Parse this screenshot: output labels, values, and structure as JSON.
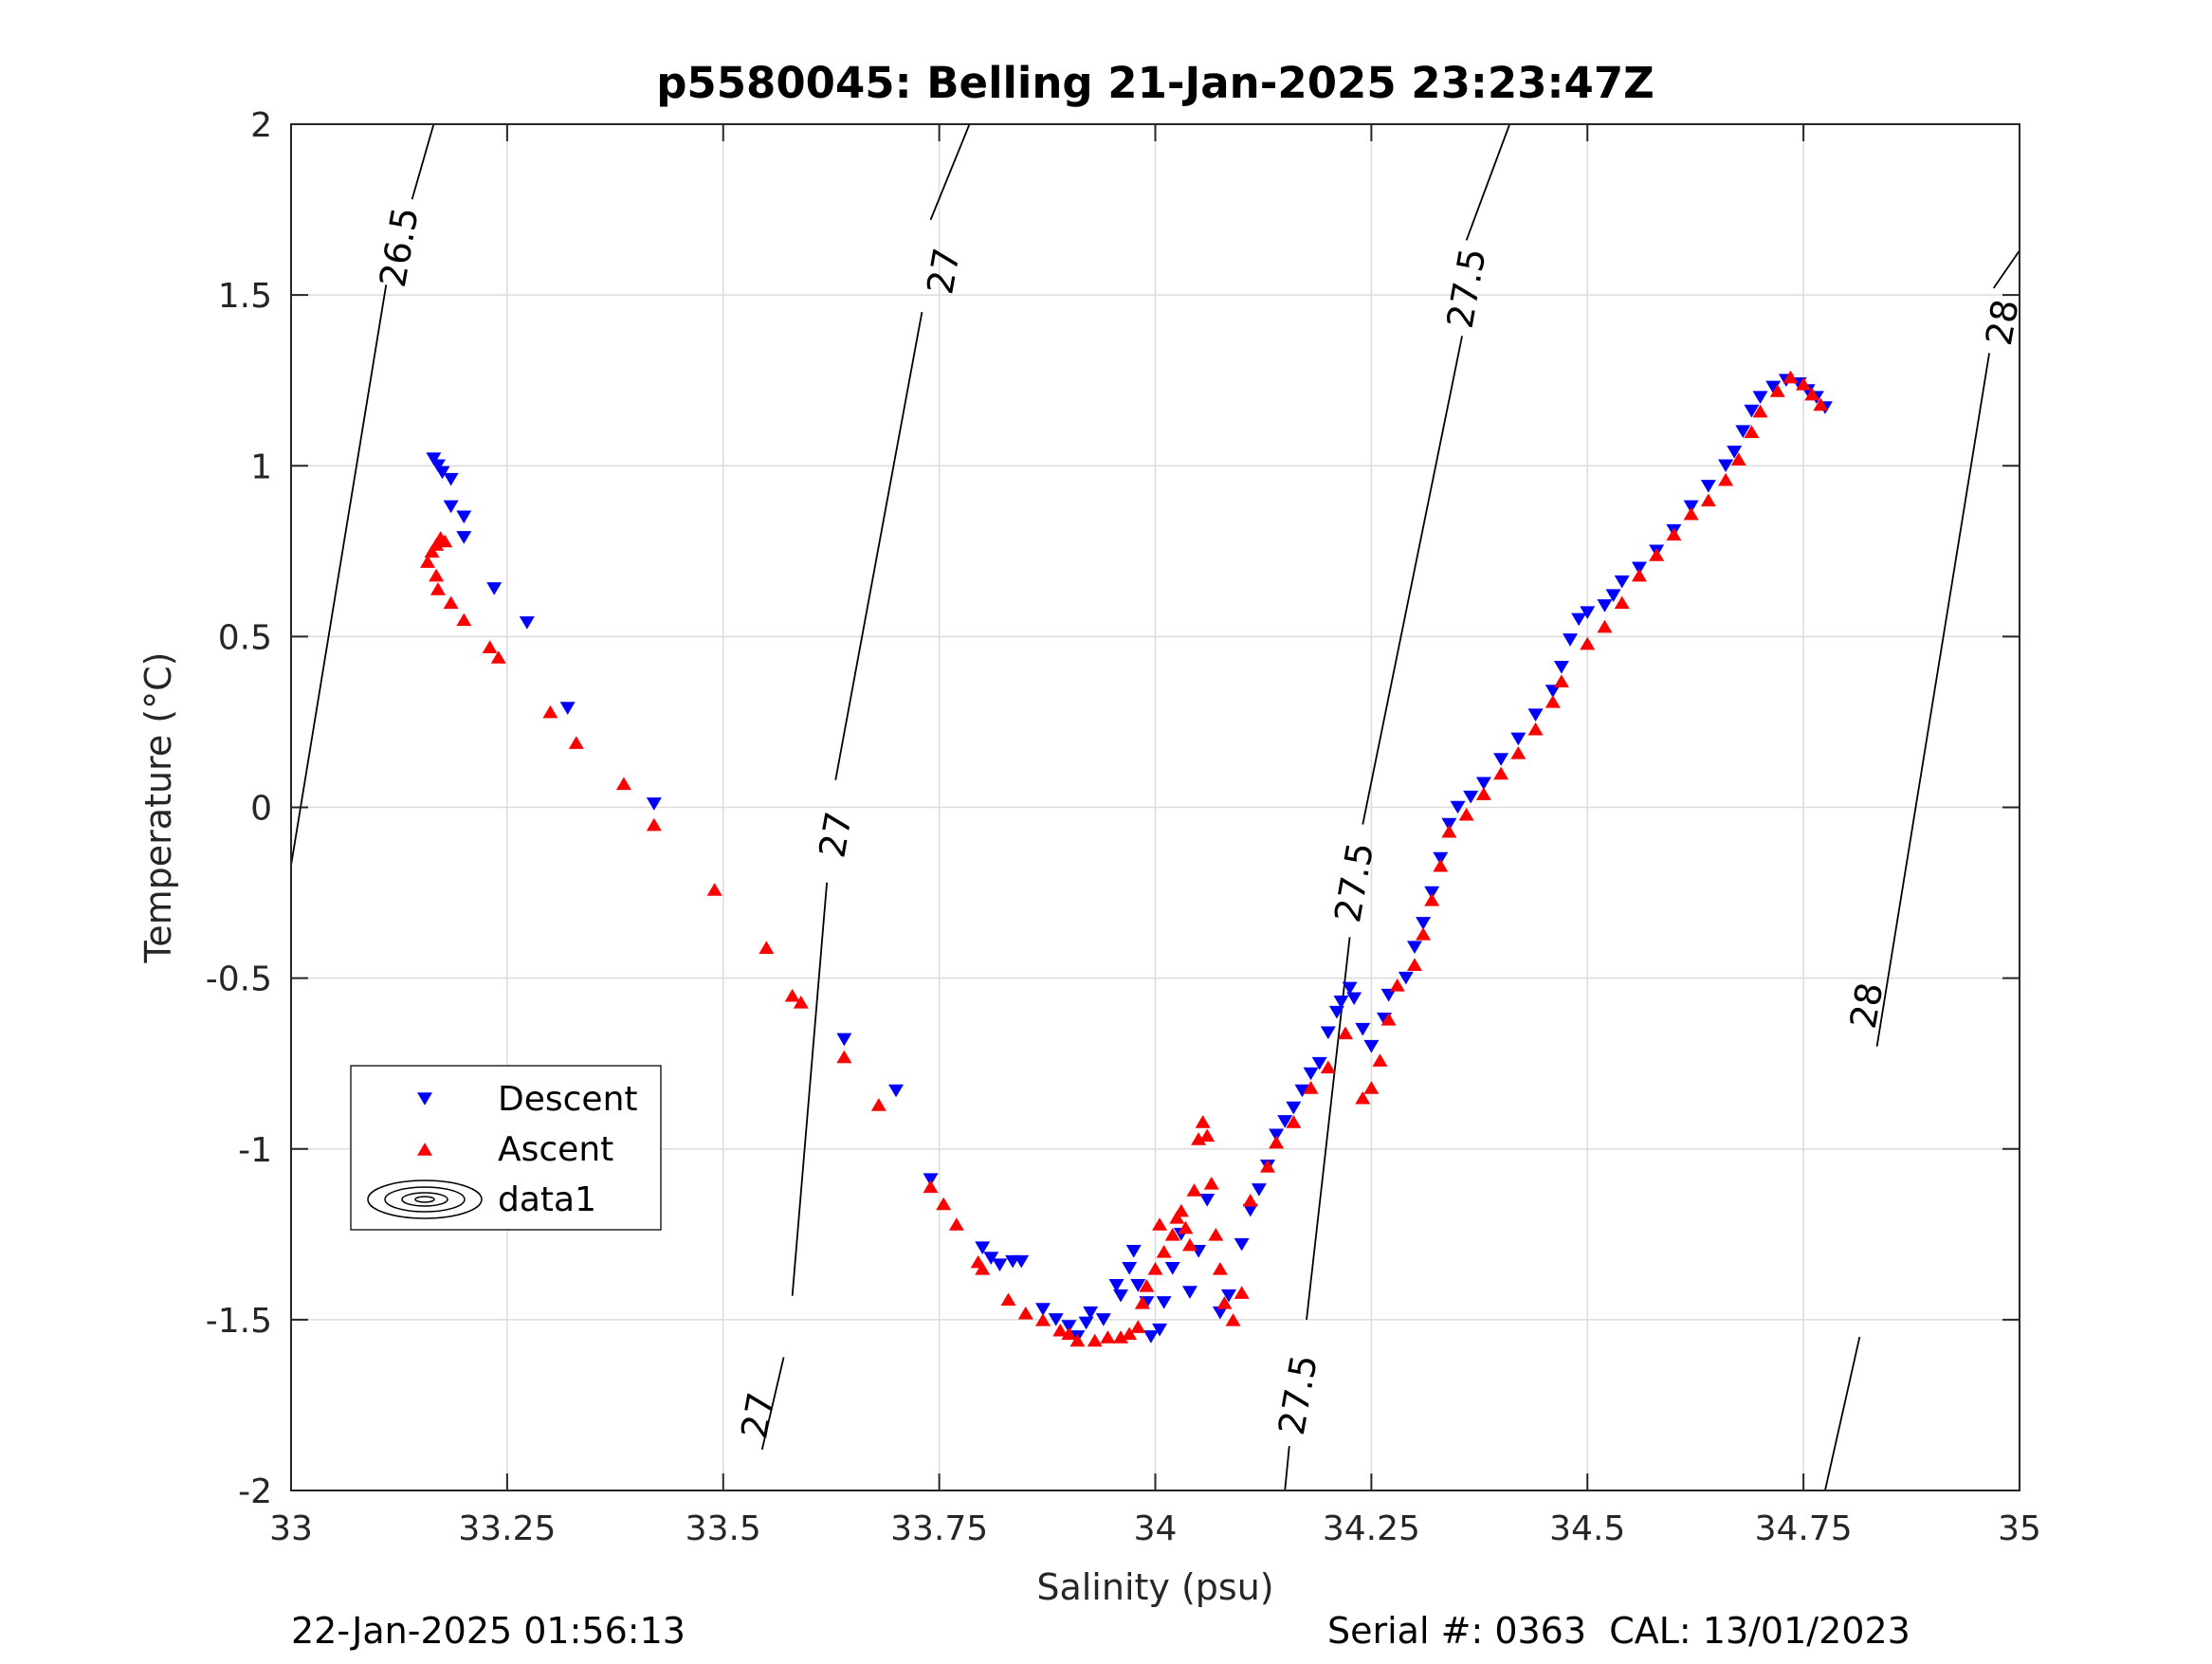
{
  "chart_data": {
    "type": "scatter",
    "title": "p5580045: Belling 21-Jan-2025 23:23:47Z",
    "xlabel": "Salinity (psu)",
    "ylabel": "Temperature (°C)",
    "xlim": [
      33,
      35
    ],
    "ylim": [
      -2,
      2
    ],
    "x_ticks": [
      33,
      33.25,
      33.5,
      33.75,
      34,
      34.25,
      34.5,
      34.75,
      35
    ],
    "x_tick_labels": [
      "33",
      "33.25",
      "33.5",
      "33.75",
      "34",
      "34.25",
      "34.5",
      "34.75",
      "35"
    ],
    "y_ticks": [
      2,
      1.5,
      1,
      0.5,
      0,
      -0.5,
      -1,
      -1.5,
      -2
    ],
    "y_tick_labels": [
      "2",
      "1.5",
      "1",
      "0.5",
      "0",
      "-0.5",
      "-1",
      "-1.5",
      "-2"
    ],
    "grid": true,
    "legend_position": "lower-left",
    "footer_left": "22-Jan-2025 01:56:13",
    "footer_right": "Serial #: 0363  CAL: 13/01/2023",
    "series": [
      {
        "name": "Descent",
        "marker": "triangle-down",
        "color": "#0000ff",
        "points": [
          [
            33.165,
            1.02
          ],
          [
            33.17,
            1.0
          ],
          [
            33.175,
            0.98
          ],
          [
            33.185,
            0.96
          ],
          [
            33.185,
            0.88
          ],
          [
            33.2,
            0.85
          ],
          [
            33.2,
            0.79
          ],
          [
            33.235,
            0.64
          ],
          [
            33.273,
            0.54
          ],
          [
            33.32,
            0.29
          ],
          [
            33.42,
            0.01
          ],
          [
            33.64,
            -0.68
          ],
          [
            33.7,
            -0.83
          ],
          [
            33.74,
            -1.09
          ],
          [
            33.8,
            -1.29
          ],
          [
            33.81,
            -1.32
          ],
          [
            33.82,
            -1.34
          ],
          [
            33.835,
            -1.33
          ],
          [
            33.845,
            -1.33
          ],
          [
            33.87,
            -1.47
          ],
          [
            33.885,
            -1.5
          ],
          [
            33.9,
            -1.52
          ],
          [
            33.91,
            -1.55
          ],
          [
            33.92,
            -1.51
          ],
          [
            33.925,
            -1.48
          ],
          [
            33.94,
            -1.5
          ],
          [
            33.955,
            -1.4
          ],
          [
            33.96,
            -1.43
          ],
          [
            33.97,
            -1.35
          ],
          [
            33.975,
            -1.3
          ],
          [
            33.98,
            -1.4
          ],
          [
            33.99,
            -1.45
          ],
          [
            33.995,
            -1.55
          ],
          [
            34.005,
            -1.53
          ],
          [
            34.01,
            -1.45
          ],
          [
            34.02,
            -1.35
          ],
          [
            34.03,
            -1.25
          ],
          [
            34.04,
            -1.42
          ],
          [
            34.05,
            -1.3
          ],
          [
            34.06,
            -1.15
          ],
          [
            34.075,
            -1.48
          ],
          [
            34.085,
            -1.43
          ],
          [
            34.1,
            -1.28
          ],
          [
            34.11,
            -1.18
          ],
          [
            34.12,
            -1.12
          ],
          [
            34.13,
            -1.05
          ],
          [
            34.14,
            -0.96
          ],
          [
            34.15,
            -0.92
          ],
          [
            34.16,
            -0.88
          ],
          [
            34.17,
            -0.83
          ],
          [
            34.18,
            -0.78
          ],
          [
            34.19,
            -0.75
          ],
          [
            34.2,
            -0.66
          ],
          [
            34.21,
            -0.6
          ],
          [
            34.215,
            -0.57
          ],
          [
            34.225,
            -0.53
          ],
          [
            34.23,
            -0.56
          ],
          [
            34.24,
            -0.65
          ],
          [
            34.25,
            -0.7
          ],
          [
            34.265,
            -0.62
          ],
          [
            34.27,
            -0.55
          ],
          [
            34.29,
            -0.5
          ],
          [
            34.3,
            -0.41
          ],
          [
            34.31,
            -0.34
          ],
          [
            34.32,
            -0.25
          ],
          [
            34.33,
            -0.15
          ],
          [
            34.34,
            -0.05
          ],
          [
            34.35,
            0.0
          ],
          [
            34.365,
            0.03
          ],
          [
            34.38,
            0.07
          ],
          [
            34.4,
            0.14
          ],
          [
            34.42,
            0.2
          ],
          [
            34.44,
            0.27
          ],
          [
            34.46,
            0.34
          ],
          [
            34.47,
            0.41
          ],
          [
            34.48,
            0.49
          ],
          [
            34.49,
            0.55
          ],
          [
            34.5,
            0.57
          ],
          [
            34.52,
            0.59
          ],
          [
            34.53,
            0.62
          ],
          [
            34.54,
            0.66
          ],
          [
            34.56,
            0.7
          ],
          [
            34.58,
            0.75
          ],
          [
            34.6,
            0.81
          ],
          [
            34.62,
            0.88
          ],
          [
            34.64,
            0.94
          ],
          [
            34.66,
            1.0
          ],
          [
            34.67,
            1.04
          ],
          [
            34.68,
            1.1
          ],
          [
            34.69,
            1.16
          ],
          [
            34.7,
            1.2
          ],
          [
            34.715,
            1.23
          ],
          [
            34.73,
            1.25
          ],
          [
            34.745,
            1.24
          ],
          [
            34.755,
            1.22
          ],
          [
            34.765,
            1.2
          ],
          [
            34.775,
            1.17
          ]
        ]
      },
      {
        "name": "Ascent",
        "marker": "triangle-up",
        "color": "#ff0000",
        "points": [
          [
            33.158,
            0.72
          ],
          [
            33.163,
            0.75
          ],
          [
            33.168,
            0.77
          ],
          [
            33.173,
            0.79
          ],
          [
            33.178,
            0.78
          ],
          [
            33.168,
            0.68
          ],
          [
            33.17,
            0.64
          ],
          [
            33.185,
            0.6
          ],
          [
            33.2,
            0.55
          ],
          [
            33.23,
            0.47
          ],
          [
            33.24,
            0.44
          ],
          [
            33.3,
            0.28
          ],
          [
            33.33,
            0.19
          ],
          [
            33.385,
            0.07
          ],
          [
            33.42,
            -0.05
          ],
          [
            33.49,
            -0.24
          ],
          [
            33.55,
            -0.41
          ],
          [
            33.58,
            -0.55
          ],
          [
            33.59,
            -0.57
          ],
          [
            33.64,
            -0.73
          ],
          [
            33.68,
            -0.87
          ],
          [
            33.74,
            -1.11
          ],
          [
            33.755,
            -1.16
          ],
          [
            33.77,
            -1.22
          ],
          [
            33.795,
            -1.33
          ],
          [
            33.8,
            -1.35
          ],
          [
            33.83,
            -1.44
          ],
          [
            33.85,
            -1.48
          ],
          [
            33.87,
            -1.5
          ],
          [
            33.89,
            -1.53
          ],
          [
            33.9,
            -1.54
          ],
          [
            33.91,
            -1.56
          ],
          [
            33.93,
            -1.56
          ],
          [
            33.945,
            -1.55
          ],
          [
            33.96,
            -1.55
          ],
          [
            33.97,
            -1.54
          ],
          [
            33.98,
            -1.52
          ],
          [
            33.985,
            -1.45
          ],
          [
            33.99,
            -1.4
          ],
          [
            34.0,
            -1.35
          ],
          [
            34.005,
            -1.22
          ],
          [
            34.01,
            -1.3
          ],
          [
            34.02,
            -1.25
          ],
          [
            34.025,
            -1.2
          ],
          [
            34.03,
            -1.18
          ],
          [
            34.035,
            -1.23
          ],
          [
            34.04,
            -1.28
          ],
          [
            34.045,
            -1.12
          ],
          [
            34.05,
            -0.97
          ],
          [
            34.055,
            -0.92
          ],
          [
            34.06,
            -0.96
          ],
          [
            34.065,
            -1.1
          ],
          [
            34.07,
            -1.25
          ],
          [
            34.075,
            -1.35
          ],
          [
            34.08,
            -1.45
          ],
          [
            34.09,
            -1.5
          ],
          [
            34.1,
            -1.42
          ],
          [
            34.11,
            -1.15
          ],
          [
            34.13,
            -1.05
          ],
          [
            34.14,
            -0.98
          ],
          [
            34.16,
            -0.92
          ],
          [
            34.18,
            -0.82
          ],
          [
            34.2,
            -0.76
          ],
          [
            34.22,
            -0.66
          ],
          [
            34.24,
            -0.85
          ],
          [
            34.25,
            -0.82
          ],
          [
            34.26,
            -0.74
          ],
          [
            34.27,
            -0.62
          ],
          [
            34.28,
            -0.52
          ],
          [
            34.3,
            -0.46
          ],
          [
            34.31,
            -0.37
          ],
          [
            34.32,
            -0.27
          ],
          [
            34.33,
            -0.17
          ],
          [
            34.34,
            -0.07
          ],
          [
            34.36,
            -0.02
          ],
          [
            34.38,
            0.04
          ],
          [
            34.4,
            0.1
          ],
          [
            34.42,
            0.16
          ],
          [
            34.44,
            0.23
          ],
          [
            34.46,
            0.31
          ],
          [
            34.47,
            0.37
          ],
          [
            34.5,
            0.48
          ],
          [
            34.52,
            0.53
          ],
          [
            34.54,
            0.6
          ],
          [
            34.56,
            0.68
          ],
          [
            34.58,
            0.74
          ],
          [
            34.6,
            0.8
          ],
          [
            34.62,
            0.86
          ],
          [
            34.64,
            0.9
          ],
          [
            34.66,
            0.96
          ],
          [
            34.675,
            1.02
          ],
          [
            34.69,
            1.1
          ],
          [
            34.7,
            1.16
          ],
          [
            34.72,
            1.22
          ],
          [
            34.735,
            1.26
          ],
          [
            34.75,
            1.24
          ],
          [
            34.76,
            1.21
          ],
          [
            34.77,
            1.18
          ]
        ]
      },
      {
        "name": "data1",
        "marker": "contour"
      }
    ],
    "contour_labels": [
      "26.5",
      "27",
      "27",
      "27",
      "27.5",
      "27.5",
      "27.5",
      "28",
      "28"
    ]
  }
}
